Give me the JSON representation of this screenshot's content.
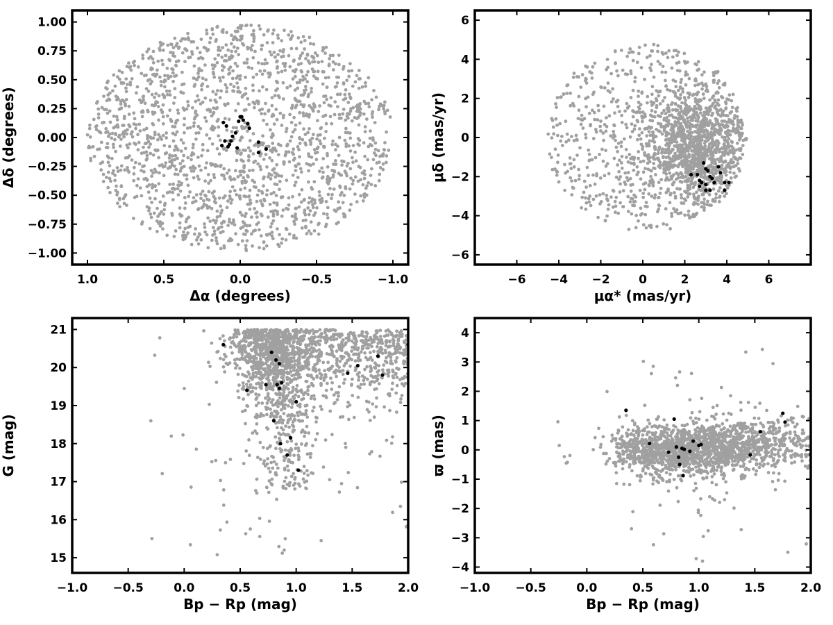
{
  "chart_data": [
    {
      "type": "scatter",
      "xlabel": "Δα (degrees)",
      "ylabel": "Δδ (degrees)",
      "xlim": [
        1.1,
        -1.1
      ],
      "ylim": [
        -1.1,
        1.1
      ],
      "x_inverted": true,
      "xticks": [
        "1.0",
        "0.5",
        "0.0",
        "−0.5",
        "−1.0"
      ],
      "yticks": [
        "−1.00",
        "−0.75",
        "−0.50",
        "−0.25",
        "0.00",
        "0.25",
        "0.50",
        "0.75",
        "1.00"
      ],
      "xtick_values": [
        1.0,
        0.5,
        0.0,
        -0.5,
        -1.0
      ],
      "ytick_values": [
        -1.0,
        -0.75,
        -0.5,
        -0.25,
        0.0,
        0.25,
        0.5,
        0.75,
        1.0
      ],
      "grid": false,
      "series": [
        {
          "color": "#a0a0a0",
          "description": "field stars uniformly filling a circle of radius ~1.0 deg",
          "count": 1800
        },
        {
          "color": "#000000",
          "x": [
            0.08,
            0.07,
            0.06,
            0.05,
            0.03,
            0.01,
            0.0,
            -0.01,
            -0.02,
            -0.05,
            -0.06,
            -0.12,
            -0.12,
            -0.17,
            0.12,
            0.1,
            0.11,
            0.09,
            0.02
          ],
          "y": [
            -0.08,
            -0.06,
            -0.03,
            0.01,
            0.04,
            0.14,
            0.18,
            0.18,
            0.15,
            0.12,
            0.08,
            -0.04,
            -0.13,
            -0.1,
            -0.07,
            -0.03,
            0.13,
            0.1,
            -0.09
          ]
        }
      ]
    },
    {
      "type": "scatter",
      "xlabel": "μα* (mas/yr)",
      "ylabel": "μδ (mas/yr)",
      "xlim": [
        -8,
        8
      ],
      "ylim": [
        -6.5,
        6.5
      ],
      "xticks": [
        "−6",
        "−4",
        "−2",
        "0",
        "2",
        "4",
        "6"
      ],
      "yticks": [
        "−6",
        "−4",
        "−2",
        "0",
        "2",
        "4",
        "6"
      ],
      "xtick_values": [
        -6,
        -4,
        -2,
        0,
        2,
        4,
        6
      ],
      "ytick_values": [
        -6,
        -4,
        -2,
        0,
        2,
        4,
        6
      ],
      "grid": false,
      "series": [
        {
          "color": "#a0a0a0",
          "description": "field stars concentrated near (2.5, -0.5) mas/yr, edge near 5 mas/yr",
          "count": 1800
        },
        {
          "color": "#000000",
          "x": [
            2.9,
            3.0,
            3.1,
            3.2,
            3.3,
            3.6,
            3.7,
            2.6,
            2.7,
            2.8,
            3.0,
            3.4,
            3.9,
            4.1,
            3.0,
            2.3,
            2.7,
            3.2,
            3.9
          ],
          "y": [
            -1.3,
            -1.6,
            -1.7,
            -2.0,
            -2.1,
            -1.5,
            -1.8,
            -1.9,
            -2.2,
            -2.3,
            -2.4,
            -2.3,
            -2.3,
            -2.3,
            -2.7,
            -1.9,
            -2.5,
            -2.7,
            -2.7
          ]
        }
      ]
    },
    {
      "type": "scatter",
      "xlabel": "Bp − Rp (mag)",
      "ylabel": "G (mag)",
      "xlim": [
        -1.0,
        2.0
      ],
      "ylim": [
        14.6,
        21.3
      ],
      "xticks": [
        "−1.0",
        "−0.5",
        "0.0",
        "0.5",
        "1.0",
        "1.5",
        "2.0"
      ],
      "yticks": [
        "15",
        "16",
        "17",
        "18",
        "19",
        "20",
        "21"
      ],
      "xtick_values": [
        -1.0,
        -0.5,
        0.0,
        0.5,
        1.0,
        1.5,
        2.0
      ],
      "ytick_values": [
        15,
        16,
        17,
        18,
        19,
        20,
        21
      ],
      "grid": false,
      "series": [
        {
          "color": "#a0a0a0",
          "description": "field stars in colour-magnitude diagram, dense for G 19-21",
          "count": 1800
        },
        {
          "color": "#000000",
          "x": [
            0.35,
            0.56,
            0.73,
            0.78,
            0.82,
            0.85,
            0.87,
            0.85,
            0.83,
            0.8,
            0.86,
            0.95,
            0.92,
            1.0,
            1.02,
            1.46,
            1.55,
            1.73,
            1.77,
            2.0
          ],
          "y": [
            20.6,
            19.4,
            19.55,
            20.4,
            20.2,
            20.1,
            19.6,
            19.45,
            19.55,
            18.6,
            18.0,
            18.15,
            17.7,
            19.1,
            17.3,
            19.85,
            20.05,
            20.3,
            19.8,
            20.6
          ]
        }
      ]
    },
    {
      "type": "scatter",
      "xlabel": "Bp − Rp (mag)",
      "ylabel": "ϖ (mas)",
      "xlim": [
        -1.0,
        2.0
      ],
      "ylim": [
        -4.2,
        4.5
      ],
      "xticks": [
        "−1.0",
        "−0.5",
        "0.0",
        "0.5",
        "1.0",
        "1.5",
        "2.0"
      ],
      "yticks": [
        "−4",
        "−3",
        "−2",
        "−1",
        "0",
        "1",
        "2",
        "3",
        "4"
      ],
      "xtick_values": [
        -1.0,
        -0.5,
        0.0,
        0.5,
        1.0,
        1.5,
        2.0
      ],
      "ytick_values": [
        -4,
        -3,
        -2,
        -1,
        0,
        1,
        2,
        3,
        4
      ],
      "grid": false,
      "series": [
        {
          "color": "#a0a0a0",
          "description": "field stars, parallax vs colour, dense near 0 mas",
          "count": 1800
        },
        {
          "color": "#000000",
          "x": [
            0.35,
            0.56,
            0.73,
            0.78,
            0.8,
            0.82,
            0.85,
            0.86,
            0.87,
            0.92,
            0.95,
            1.0,
            1.02,
            1.46,
            1.55,
            1.75,
            1.77,
            2.0,
            0.83
          ],
          "y": [
            1.35,
            0.22,
            -0.08,
            1.05,
            0.1,
            -0.25,
            0.05,
            -0.88,
            0.02,
            -0.05,
            0.3,
            0.15,
            0.18,
            -0.17,
            0.62,
            1.25,
            0.95,
            -0.15,
            -0.5
          ]
        }
      ]
    }
  ]
}
